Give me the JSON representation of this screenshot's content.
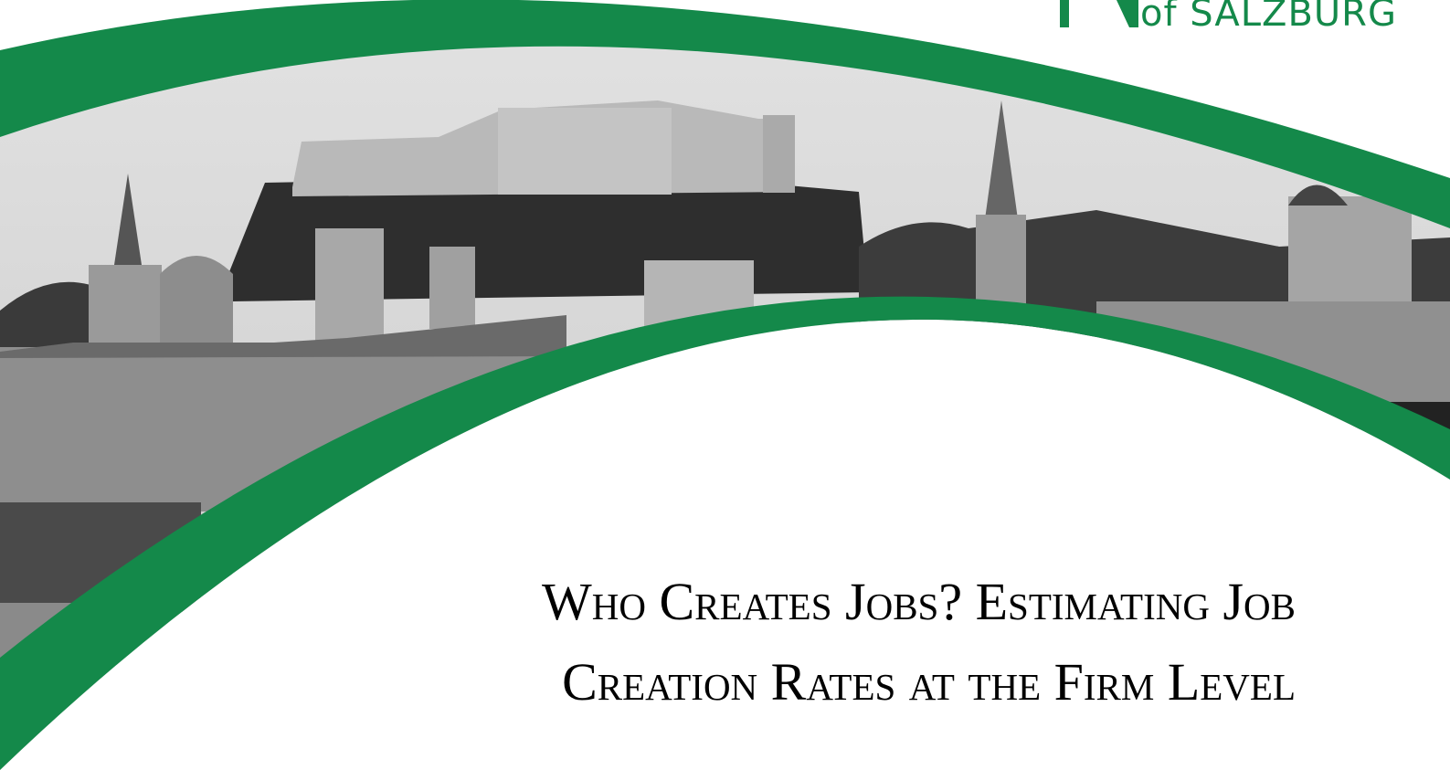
{
  "header": {
    "logo_text": "of SALZBURG"
  },
  "title": {
    "lines": [
      "Who Creates Jobs? Estimating Job",
      "Creation Rates at the Firm Level"
    ]
  }
}
